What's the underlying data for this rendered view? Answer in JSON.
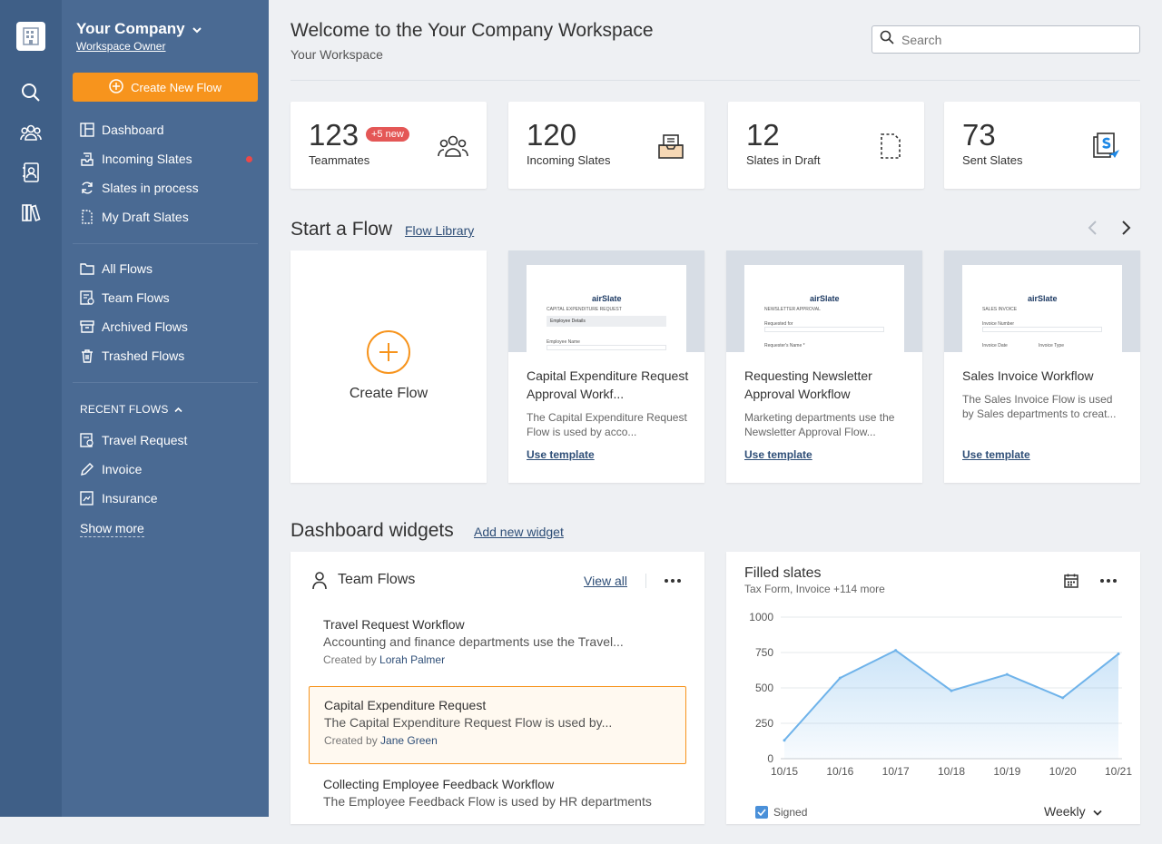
{
  "sidebar": {
    "company": "Your Company",
    "role": "Workspace Owner",
    "create_label": "Create New Flow",
    "items": [
      {
        "label": "Dashboard"
      },
      {
        "label": "Incoming Slates"
      },
      {
        "label": "Slates in process"
      },
      {
        "label": "My Draft Slates"
      },
      {
        "label": "All Flows"
      },
      {
        "label": "Team Flows"
      },
      {
        "label": "Archived Flows"
      },
      {
        "label": "Trashed Flows"
      }
    ],
    "recent_heading": "RECENT FLOWS",
    "recent": [
      {
        "label": "Travel Request"
      },
      {
        "label": "Invoice"
      },
      {
        "label": "Insurance"
      }
    ],
    "show_more": "Show more"
  },
  "header": {
    "title": "Welcome to the Your Company Workspace",
    "subtitle": "Your Workspace",
    "search_placeholder": "Search"
  },
  "stats": [
    {
      "value": "123",
      "label": "Teammates",
      "badge": "+5 new"
    },
    {
      "value": "120",
      "label": "Incoming Slates"
    },
    {
      "value": "12",
      "label": "Slates in Draft"
    },
    {
      "value": "73",
      "label": "Sent Slates"
    }
  ],
  "flows": {
    "heading": "Start a Flow",
    "library_link": "Flow Library",
    "create_label": "Create Flow",
    "cards": [
      {
        "title": "Capital Expenditure Request Approval Workf...",
        "desc": "The Capital Expenditure Request Flow is used by acco...",
        "action": "Use template",
        "doc_title": "CAPITAL EXPENDITURE REQUEST",
        "doc_section": "Employee Details",
        "doc_field": "Employee Name"
      },
      {
        "title": "Requesting Newsletter Approval Workflow",
        "desc": "Marketing departments use the Newsletter Approval Flow...",
        "action": "Use template",
        "doc_title": "NEWSLETTER APPROVAL",
        "doc_field": "Requested for",
        "doc_field2": "Requester's Name *"
      },
      {
        "title": "Sales Invoice Workflow",
        "desc": "The Sales Invoice Flow is used by Sales departments to creat...",
        "action": "Use template",
        "doc_title": "SALES INVOICE",
        "doc_field": "Invoice Number",
        "doc_field2": "Invoice Date",
        "doc_field3": "Invoice Type"
      }
    ],
    "doc_logo": "airSlate"
  },
  "widgets": {
    "heading": "Dashboard widgets",
    "add_link": "Add new widget",
    "team_flows": {
      "title": "Team Flows",
      "view_all": "View all",
      "created_by_label": "Created by",
      "rows": [
        {
          "title": "Travel Request Workflow",
          "desc": "Accounting and finance departments use the Travel...",
          "author": "Lorah Palmer"
        },
        {
          "title": "Capital Expenditure Request",
          "desc": "The Capital Expenditure Request Flow is used by...",
          "author": "Jane Green"
        },
        {
          "title": "Collecting Employee Feedback Workflow",
          "desc": "The Employee Feedback Flow is used by HR departments"
        }
      ]
    },
    "filled": {
      "title": "Filled slates",
      "subtitle": "Tax Form, Invoice +114 more",
      "legend": "Signed",
      "period": "Weekly"
    }
  },
  "chart_data": {
    "type": "area",
    "categories": [
      "10/15",
      "10/16",
      "10/17",
      "10/18",
      "10/19",
      "10/20",
      "10/21"
    ],
    "series": [
      {
        "name": "Signed",
        "values": [
          130,
          570,
          765,
          480,
          595,
          430,
          740
        ]
      }
    ],
    "ylim": [
      0,
      1000
    ],
    "yticks": [
      "0",
      "250",
      "500",
      "750",
      "1000"
    ],
    "color": "#6fb3ea",
    "grid": true
  },
  "colors": {
    "accent": "#f7941d",
    "sidebar": "#4a6a93",
    "rail": "#3f5f87",
    "badge": "#e45756",
    "link": "#2e4e77"
  }
}
